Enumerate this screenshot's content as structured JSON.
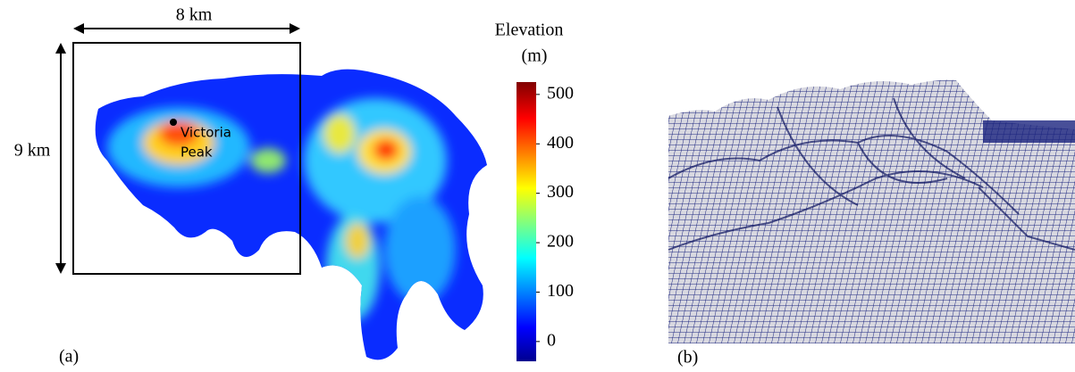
{
  "panel_a": {
    "label": "(a)",
    "width_label": "8 km",
    "height_label": "9 km",
    "marker_label": [
      "Victoria",
      "Peak"
    ],
    "colorbar": {
      "title": [
        "Elevation",
        "(m)"
      ],
      "lim": [
        -40,
        525
      ],
      "ticks": [
        0,
        100,
        200,
        300,
        400,
        500
      ]
    }
  },
  "panel_b": {
    "label": "(b)"
  }
}
